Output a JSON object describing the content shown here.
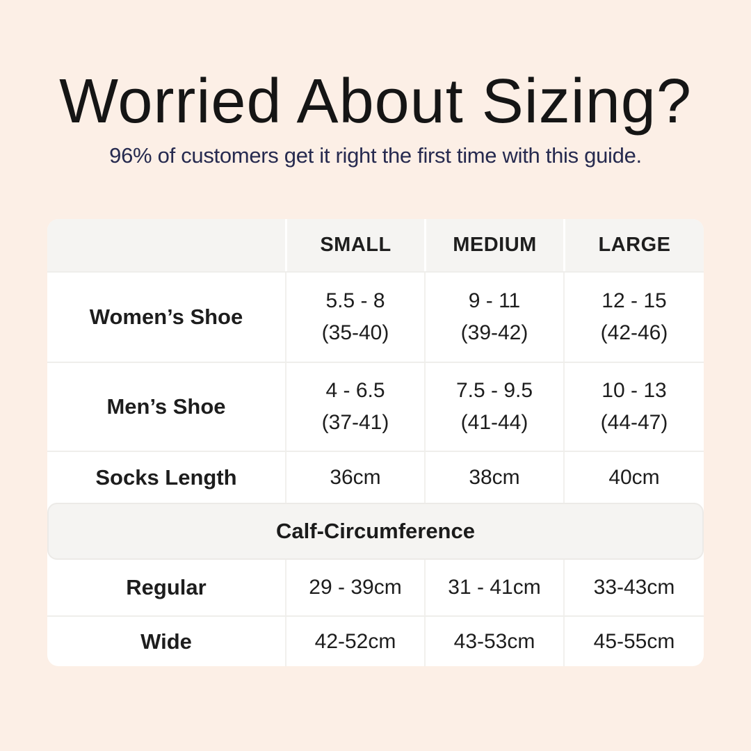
{
  "header": {
    "title": "Worried About Sizing?",
    "subtitle": "96% of customers get it right the first time with this guide."
  },
  "colors": {
    "page_background": "#fcefe6",
    "card_background": "#ffffff",
    "header_row_background": "#f5f4f2",
    "section_band_background": "#f5f4f2",
    "divider": "#efeeeb",
    "title_text": "#151515",
    "subtitle_text": "#262a4f",
    "table_text": "#1d1d1d"
  },
  "chart_data": {
    "type": "table",
    "title": "Worried About Sizing?",
    "subtitle": "96% of customers get it right the first time with this guide.",
    "columns": [
      "",
      "SMALL",
      "MEDIUM",
      "LARGE"
    ],
    "body_rows": [
      {
        "label": "Women’s Shoe",
        "cells": [
          {
            "main": "5.5 - 8",
            "sub": "(35-40)"
          },
          {
            "main": "9 - 11",
            "sub": "(39-42)"
          },
          {
            "main": "12 - 15",
            "sub": "(42-46)"
          }
        ]
      },
      {
        "label": "Men’s Shoe",
        "cells": [
          {
            "main": "4 - 6.5",
            "sub": "(37-41)"
          },
          {
            "main": "7.5 - 9.5",
            "sub": "(41-44)"
          },
          {
            "main": "10 - 13",
            "sub": "(44-47)"
          }
        ]
      },
      {
        "label": "Socks Length",
        "cells": [
          {
            "main": "36cm"
          },
          {
            "main": "38cm"
          },
          {
            "main": "40cm"
          }
        ]
      }
    ],
    "section": "Calf-Circumference",
    "section_rows": [
      {
        "label": "Regular",
        "cells": [
          {
            "main": "29 - 39cm"
          },
          {
            "main": "31 - 41cm"
          },
          {
            "main": "33-43cm"
          }
        ]
      },
      {
        "label": "Wide",
        "cells": [
          {
            "main": "42-52cm"
          },
          {
            "main": "43-53cm"
          },
          {
            "main": "45-55cm"
          }
        ]
      }
    ]
  }
}
